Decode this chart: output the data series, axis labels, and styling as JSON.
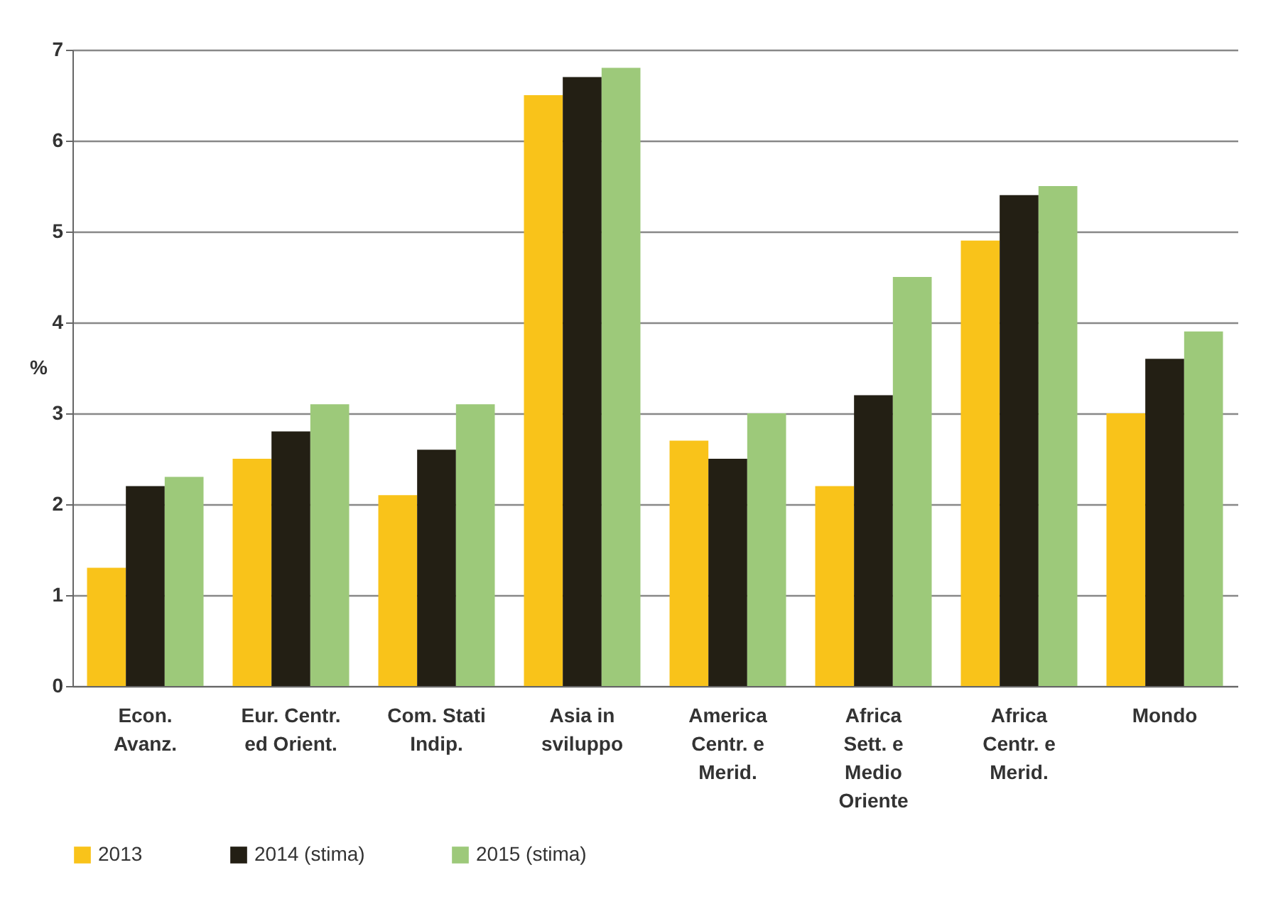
{
  "chart_data": {
    "type": "bar",
    "ylabel": "%",
    "categories": [
      "Econ. Avanz.",
      "Eur. Centr. ed Orient.",
      "Com. Stati Indip.",
      "Asia in sviluppo",
      "America Centr. e Merid.",
      "Africa Sett. e Medio Oriente",
      "Africa Centr. e Merid.",
      "Mondo"
    ],
    "series": [
      {
        "name": "2013",
        "color": "#f9c31a",
        "values": [
          1.3,
          2.5,
          2.1,
          6.5,
          2.7,
          2.2,
          4.9,
          3.0
        ]
      },
      {
        "name": "2014 (stima)",
        "color": "#231f14",
        "values": [
          2.2,
          2.8,
          2.6,
          6.7,
          2.5,
          3.2,
          5.4,
          3.6
        ]
      },
      {
        "name": "2015 (stima)",
        "color": "#9dc97a",
        "values": [
          2.3,
          3.1,
          3.1,
          6.8,
          3.0,
          4.5,
          5.5,
          3.9
        ]
      }
    ],
    "ylim": [
      0,
      7
    ],
    "yticks": [
      0,
      1,
      2,
      3,
      4,
      5,
      6,
      7
    ],
    "grid": "y",
    "legend": "bottom"
  }
}
